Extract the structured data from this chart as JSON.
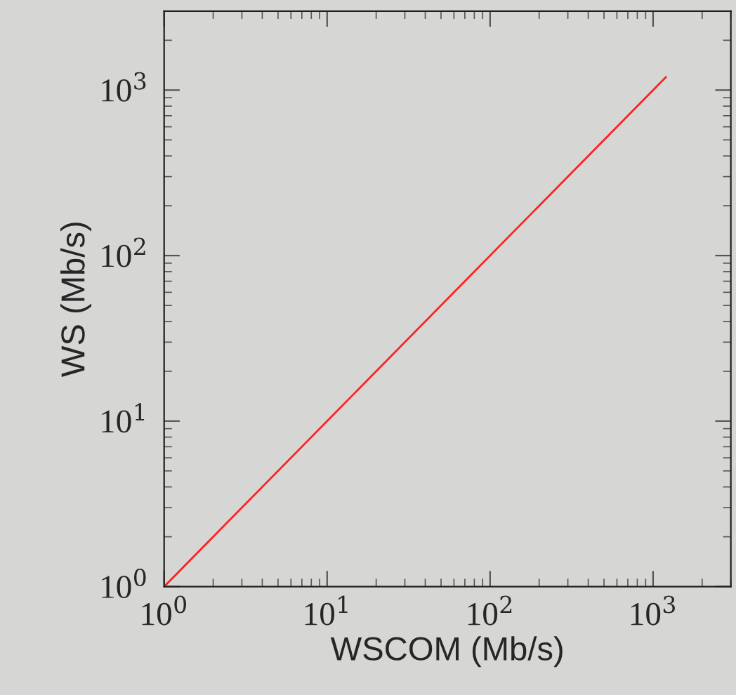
{
  "chart_data": {
    "type": "line",
    "xlabel": "WSCOM (Mb/s)",
    "ylabel": "WS (Mb/s)",
    "log": "xy",
    "grid": false,
    "x": [
      1,
      1200
    ],
    "series": [
      {
        "color": "#ff2020",
        "values": [
          1,
          1200
        ]
      }
    ],
    "xlim": [
      1,
      3000
    ],
    "ylim": [
      1,
      3000
    ],
    "xticks": [
      {
        "value": 1,
        "label": "10$^{0}$"
      },
      {
        "value": 10,
        "label": "10$^{1}$"
      },
      {
        "value": 100,
        "label": "10$^{2}$"
      },
      {
        "value": 1000,
        "label": "10$^{3}$"
      }
    ],
    "yticks": [
      {
        "value": 1,
        "label": "10$^{0}$"
      },
      {
        "value": 10,
        "label": "10$^{1}$"
      },
      {
        "value": 100,
        "label": "10$^{2}$"
      },
      {
        "value": 1000,
        "label": "10$^{3}$"
      }
    ],
    "marker": "none",
    "line_style": "solid"
  }
}
